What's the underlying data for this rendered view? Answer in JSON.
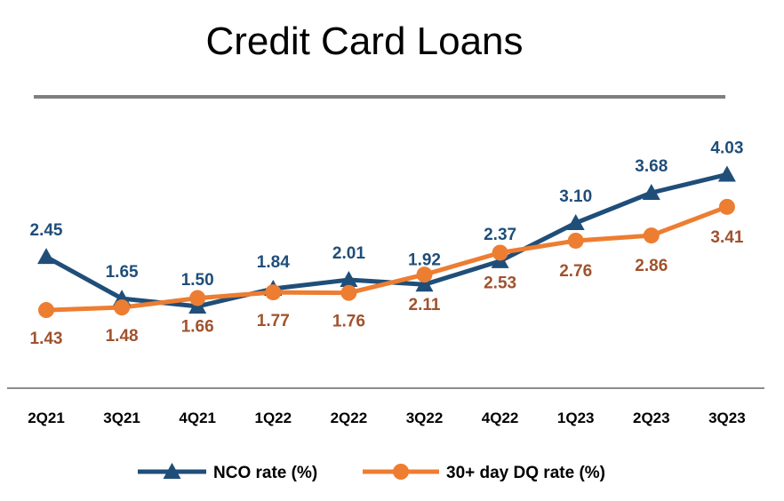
{
  "title": "Credit Card Loans",
  "chart_data": {
    "type": "line",
    "title": "Credit Card Loans",
    "categories": [
      "2Q21",
      "3Q21",
      "4Q21",
      "1Q22",
      "2Q22",
      "3Q22",
      "4Q22",
      "1Q23",
      "2Q23",
      "3Q23"
    ],
    "series": [
      {
        "name": "NCO rate (%)",
        "values": [
          2.45,
          1.65,
          1.5,
          1.84,
          2.01,
          1.92,
          2.37,
          3.1,
          3.68,
          4.03
        ],
        "labels": [
          "2.45",
          "1.65",
          "1.50",
          "1.84",
          "2.01",
          "1.92",
          "2.37",
          "3.10",
          "3.68",
          "4.03"
        ],
        "color": "#1f4e79",
        "label_color": "#1f4e79",
        "marker": "triangle"
      },
      {
        "name": "30+ day DQ rate (%)",
        "values": [
          1.43,
          1.48,
          1.66,
          1.77,
          1.76,
          2.11,
          2.53,
          2.76,
          2.86,
          3.41
        ],
        "labels": [
          "1.43",
          "1.48",
          "1.66",
          "1.77",
          "1.76",
          "2.11",
          "2.53",
          "2.76",
          "2.86",
          "3.41"
        ],
        "color": "#ed7d31",
        "label_color": "#a0522d",
        "marker": "circle"
      }
    ],
    "legend_position": "bottom",
    "grid": false,
    "ylim": [
      0,
      4.5
    ]
  }
}
